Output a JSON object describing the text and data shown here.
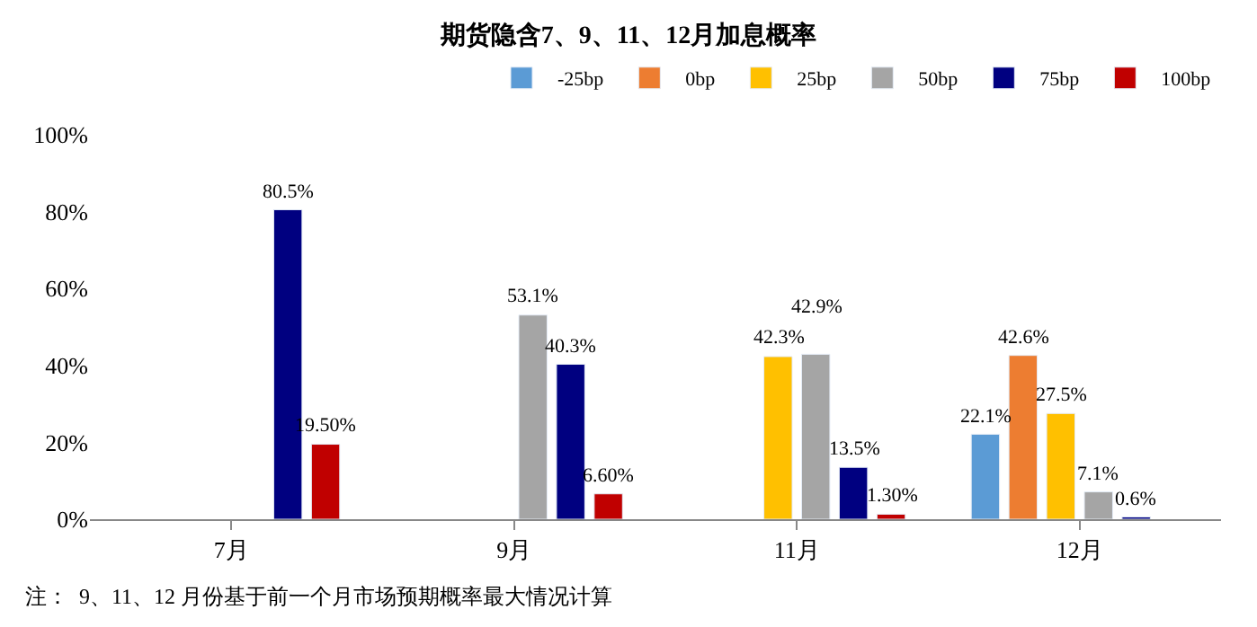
{
  "chart_data": {
    "type": "bar",
    "title": "期货隐含7、9、11、12月加息概率",
    "categories": [
      "7月",
      "9月",
      "11月",
      "12月"
    ],
    "series": [
      {
        "name": "-25bp",
        "color": "#5b9bd5",
        "values": [
          null,
          null,
          null,
          22.1
        ],
        "value_labels": [
          null,
          null,
          null,
          "22.1%"
        ]
      },
      {
        "name": "0bp",
        "color": "#ed7d31",
        "values": [
          null,
          null,
          null,
          42.6
        ],
        "value_labels": [
          null,
          null,
          null,
          "42.6%"
        ]
      },
      {
        "name": "25bp",
        "color": "#ffc000",
        "values": [
          null,
          null,
          42.3,
          27.5
        ],
        "value_labels": [
          null,
          null,
          "42.3%",
          "27.5%"
        ]
      },
      {
        "name": "50bp",
        "color": "#a5a5a5",
        "values": [
          null,
          53.1,
          42.9,
          7.1
        ],
        "value_labels": [
          null,
          "53.1%",
          "42.9%",
          "7.1%"
        ]
      },
      {
        "name": "75bp",
        "color": "#000080",
        "values": [
          80.5,
          40.3,
          13.5,
          0.6
        ],
        "value_labels": [
          "80.5%",
          "40.3%",
          "13.5%",
          "0.6%"
        ]
      },
      {
        "name": "100bp",
        "color": "#c00000",
        "values": [
          19.5,
          6.6,
          1.3,
          null
        ],
        "value_labels": [
          "19.50%",
          "6.60%",
          "1.30%",
          null
        ]
      }
    ],
    "ylim": [
      0,
      100
    ],
    "yticks": [
      {
        "value": 0,
        "label": "0%"
      },
      {
        "value": 20,
        "label": "20%"
      },
      {
        "value": 40,
        "label": "40%"
      },
      {
        "value": 60,
        "label": "60%"
      },
      {
        "value": 80,
        "label": "80%"
      },
      {
        "value": 100,
        "label": "100%"
      }
    ],
    "legend": "top right",
    "annotations": [
      "注：  9、11、12 月份基于前一个月市场预期概率最大情况计算"
    ]
  }
}
